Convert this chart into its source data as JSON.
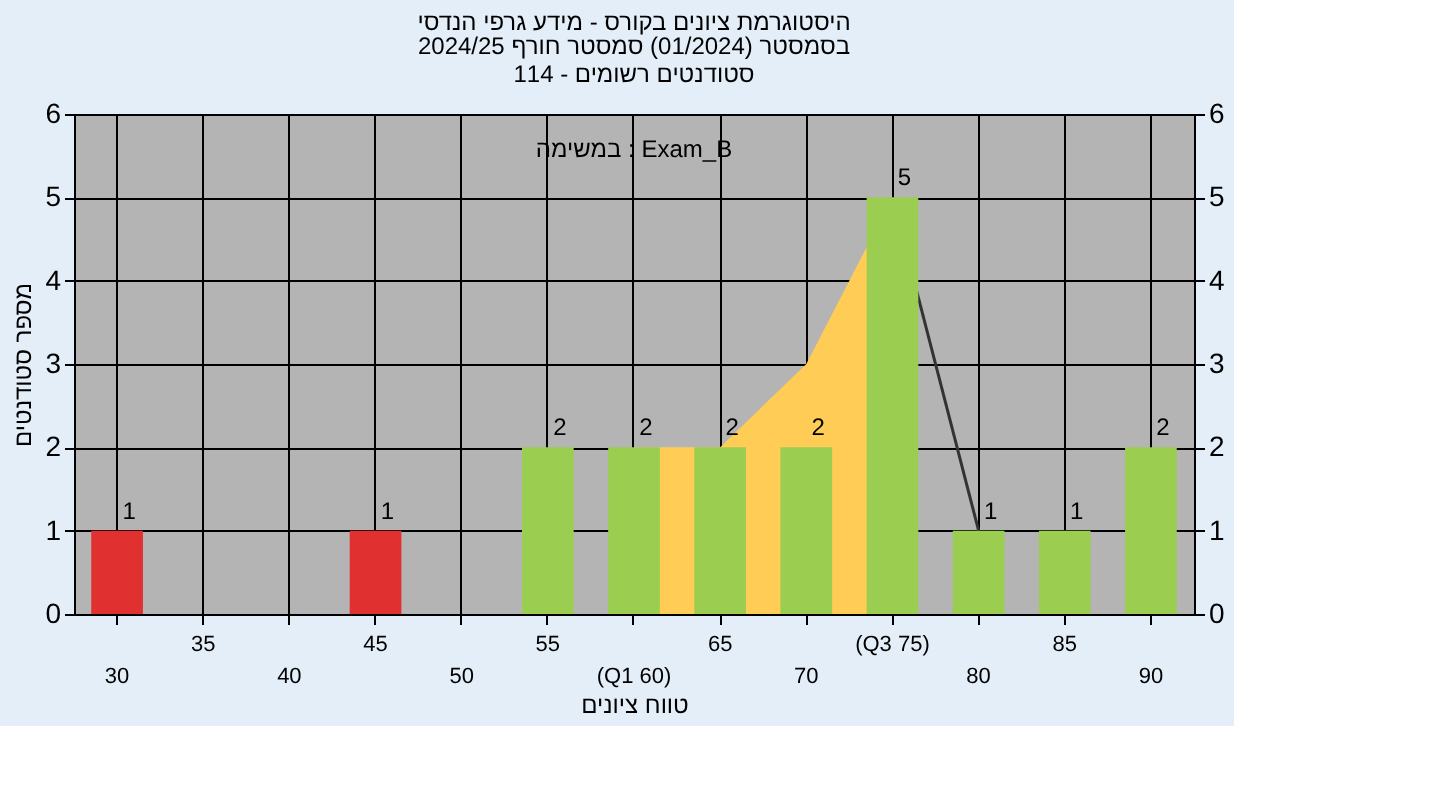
{
  "chart_data": {
    "type": "bar",
    "title": "היסטוגרמת ציונים בקורס - מידע גרפי הנדסי",
    "subtitle": "בסמסטר  (01/2024)  סמסטר חורף 2024/25\nסטודנטים רשומים - 114",
    "categories": [
      "30",
      "35",
      "40",
      "45",
      "50",
      "55",
      "(Q1 60)",
      "65",
      "70",
      "(Q3 75)",
      "80",
      "85",
      "90"
    ],
    "series": [
      {
        "type": "area",
        "color": "#ffcc55",
        "values": [
          null,
          null,
          null,
          null,
          null,
          null,
          2,
          2,
          3,
          5,
          null,
          null,
          null
        ]
      },
      {
        "type": "line",
        "color": "#333333",
        "values": [
          null,
          null,
          null,
          null,
          null,
          null,
          null,
          null,
          null,
          5,
          1,
          null,
          null
        ]
      },
      {
        "colors": [
          "#e03030",
          "#9acd50",
          "#9acd50",
          "#e03030",
          "#9acd50",
          "#9acd50",
          "#9acd50",
          "#9acd50",
          "#9acd50",
          "#9acd50",
          "#9acd50",
          "#9acd50",
          "#9acd50"
        ],
        "values": [
          1,
          0,
          0,
          1,
          0,
          2,
          2,
          2,
          2,
          5,
          1,
          1,
          2
        ],
        "value_labels": [
          "1",
          null,
          null,
          "1",
          null,
          "2",
          "2",
          "2",
          "2",
          "5",
          "1",
          "1",
          "2"
        ]
      }
    ],
    "xlabel": "טווח ציונים",
    "ylabel": "מספר סטודנטים",
    "ylim": [
      0,
      6
    ],
    "yticks": [
      0,
      1,
      2,
      3,
      4,
      5,
      6
    ],
    "y2lim": [
      0,
      6
    ],
    "y2ticks": [
      0,
      1,
      2,
      3,
      4,
      5,
      6
    ],
    "annotations": [
      "במשימה : Exam_B"
    ],
    "grid": true
  }
}
